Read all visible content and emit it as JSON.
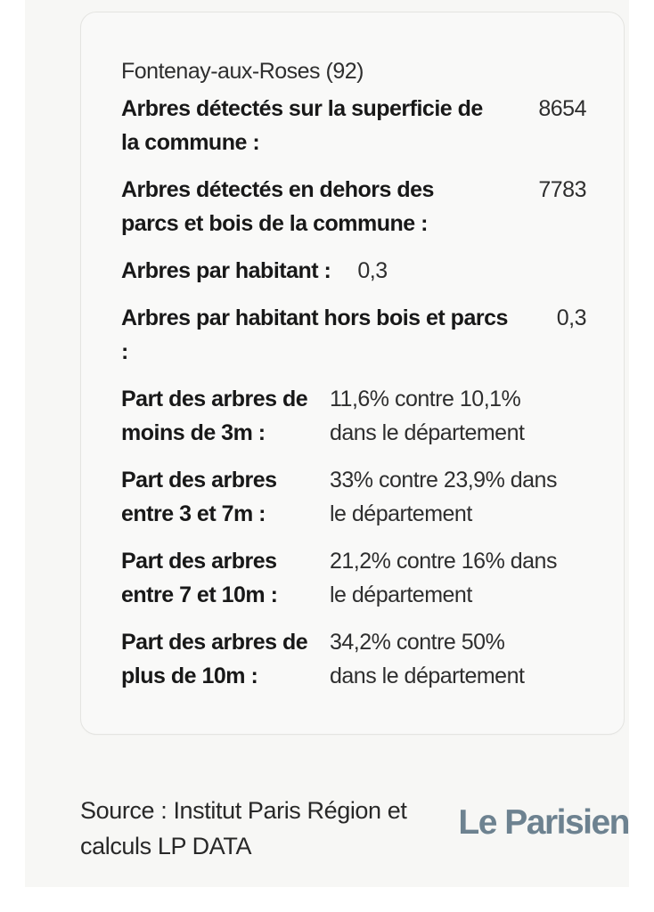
{
  "card": {
    "title": "Fontenay-aux-Roses (92)",
    "rows": [
      {
        "label_lines": [
          "Arbres détectés sur la superficie de",
          "la commune :"
        ],
        "value_lines": [
          "8654"
        ]
      },
      {
        "label_lines": [
          "Arbres détectés en dehors des",
          "parcs et bois de la commune :"
        ],
        "value_lines": [
          "7783"
        ]
      },
      {
        "label_lines": [
          "Arbres par habitant :"
        ],
        "value_lines": [
          "0,3"
        ]
      },
      {
        "label_lines": [
          "Arbres par habitant hors bois et parcs",
          ":"
        ],
        "value_lines": [
          "0,3"
        ]
      },
      {
        "label_lines": [
          "Part des arbres de",
          "moins de 3m :"
        ],
        "value_lines": [
          "11,6% contre 10,1%",
          "dans le département"
        ]
      },
      {
        "label_lines": [
          "Part des arbres",
          "entre 3 et 7m :"
        ],
        "value_lines": [
          "33% contre 23,9% dans",
          "le département"
        ]
      },
      {
        "label_lines": [
          "Part des arbres",
          "entre 7 et 10m :"
        ],
        "value_lines": [
          "21,2% contre 16% dans",
          "le département"
        ]
      },
      {
        "label_lines": [
          "Part des arbres de",
          "plus de 10m :"
        ],
        "value_lines": [
          "34,2% contre 50%",
          "dans le département"
        ]
      }
    ]
  },
  "footer": {
    "source": "Source : Institut Paris Région et calculs LP DATA",
    "brand": "Le Parisien"
  },
  "colors": {
    "brand_logo": "#6d8290",
    "panel_background": "#f7f7f5",
    "card_background": "#f9f9f8",
    "card_border": "#e4e4e1",
    "text": "#2e2e2e"
  },
  "chart_data": {
    "type": "table",
    "title": "Fontenay-aux-Roses (92)",
    "rows": [
      {
        "label": "Arbres détectés sur la superficie de la commune",
        "value": 8654
      },
      {
        "label": "Arbres détectés en dehors des parcs et bois de la commune",
        "value": 7783
      },
      {
        "label": "Arbres par habitant",
        "value": 0.3
      },
      {
        "label": "Arbres par habitant hors bois et parcs",
        "value": 0.3
      },
      {
        "label": "Part des arbres de moins de 3m",
        "commune_pct": 11.6,
        "departement_pct": 10.1
      },
      {
        "label": "Part des arbres entre 3 et 7m",
        "commune_pct": 33,
        "departement_pct": 23.9
      },
      {
        "label": "Part des arbres entre 7 et 10m",
        "commune_pct": 21.2,
        "departement_pct": 16
      },
      {
        "label": "Part des arbres de plus de 10m",
        "commune_pct": 34.2,
        "departement_pct": 50
      }
    ],
    "source": "Institut Paris Région et calculs LP DATA",
    "brand": "Le Parisien"
  }
}
